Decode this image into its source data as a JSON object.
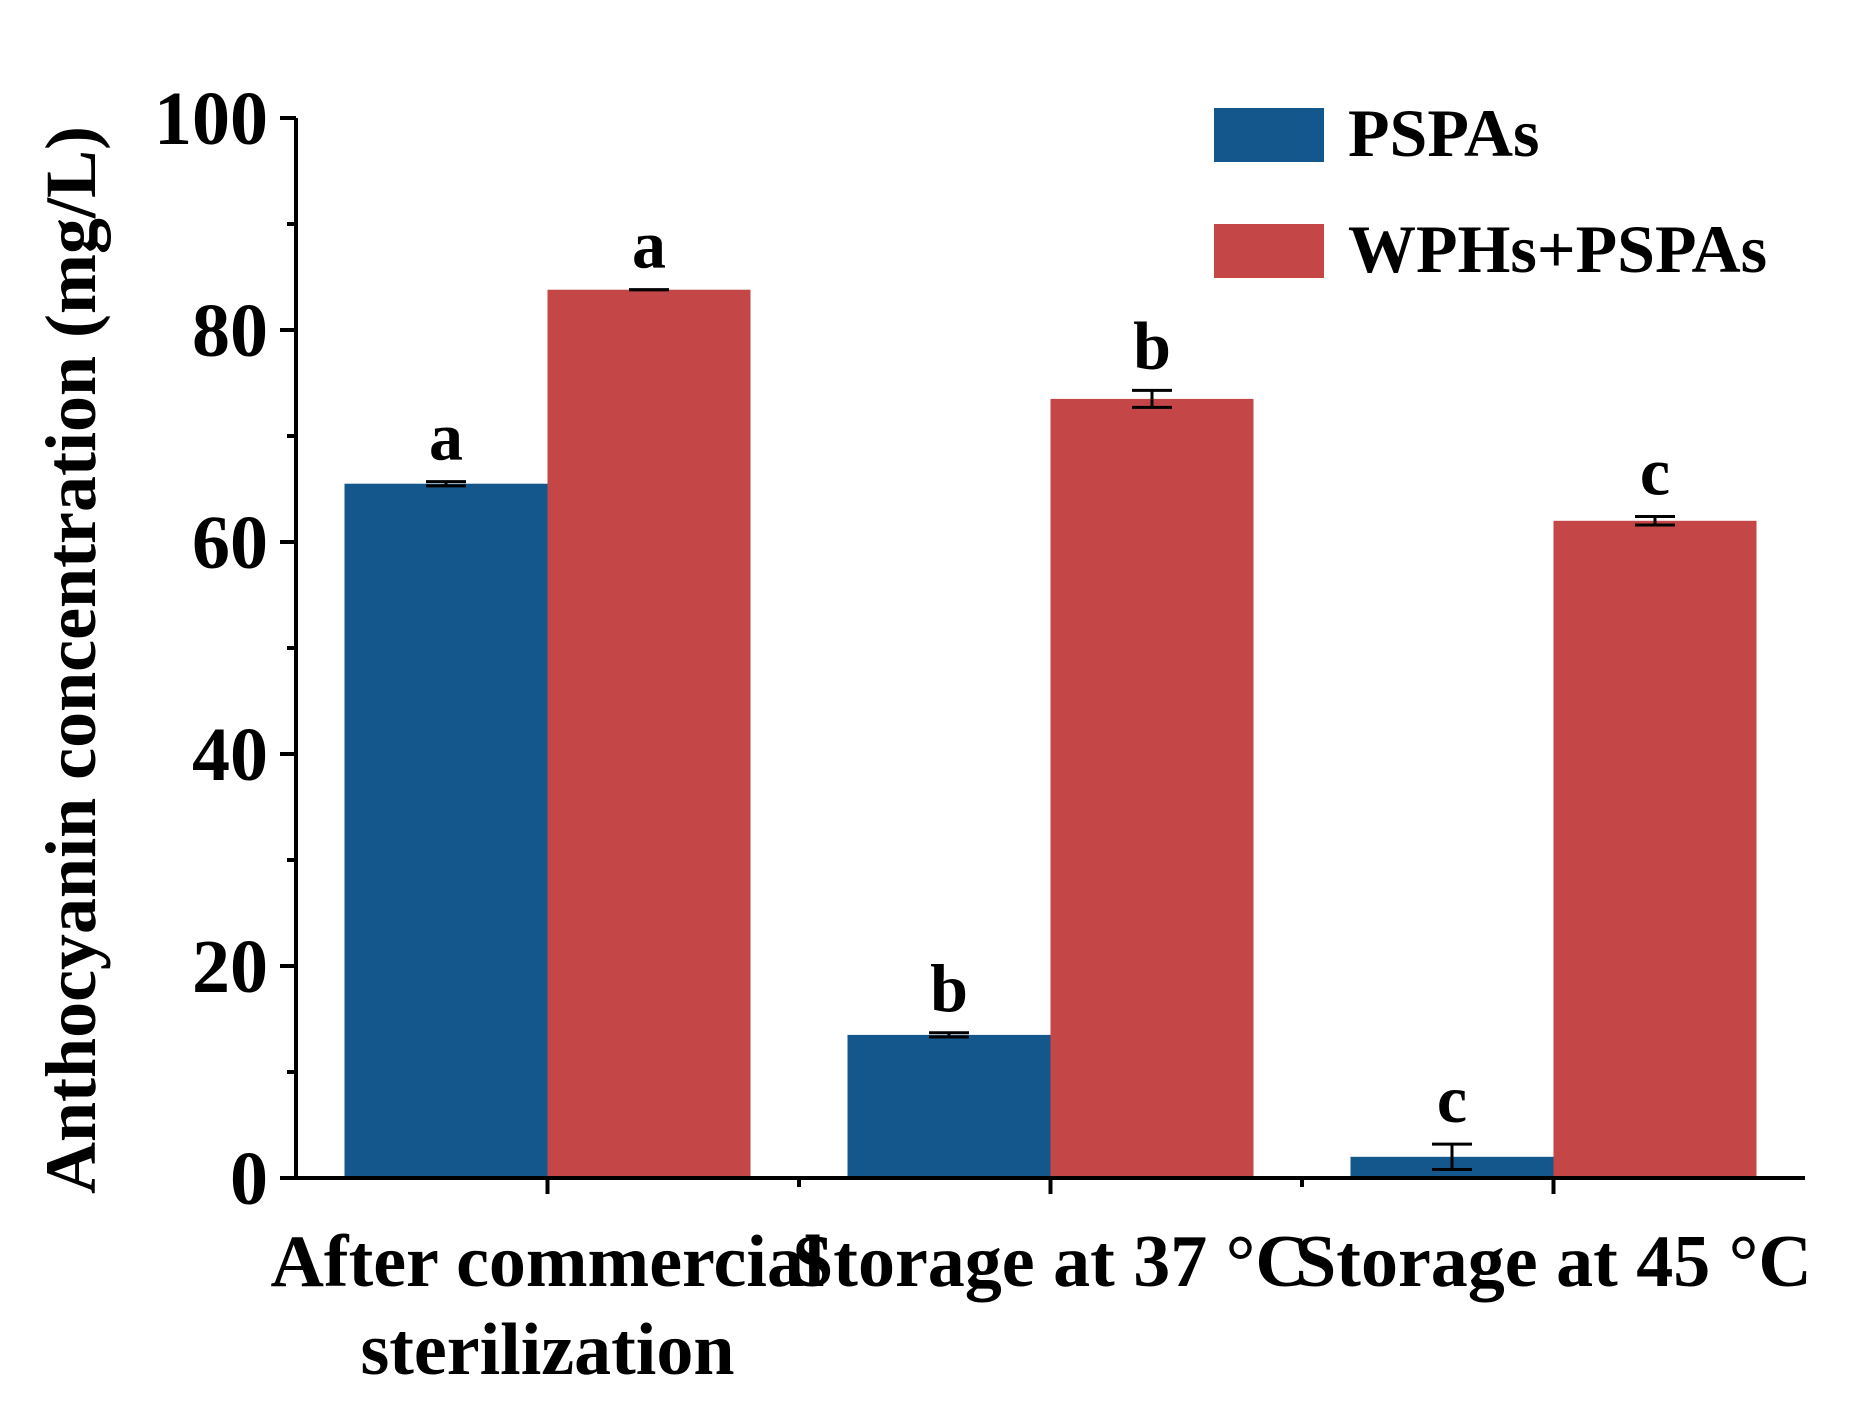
{
  "chart_data": {
    "type": "bar",
    "title": "",
    "xlabel": "",
    "ylabel": "Anthocyanin concentration (mg/L)",
    "ylim": [
      0,
      100
    ],
    "yticks": [
      0,
      20,
      40,
      60,
      80,
      100
    ],
    "categories": [
      [
        "After commercial",
        "sterilization"
      ],
      [
        "Storage at 37 °C"
      ],
      [
        "Storage at 45 °C"
      ]
    ],
    "series": [
      {
        "name": "PSPAs",
        "color": "#13578d",
        "values": [
          65.5,
          13.5,
          2.0
        ],
        "errors": [
          0.2,
          0.2,
          1.2
        ],
        "labels": [
          "a",
          "b",
          "c"
        ]
      },
      {
        "name": "WPHs+PSPAs",
        "color": "#c44646",
        "values": [
          83.8,
          73.5,
          62.0
        ],
        "errors": [
          0.0,
          0.8,
          0.4
        ],
        "labels": [
          "a",
          "b",
          "c"
        ]
      }
    ],
    "legend_position": "top-right",
    "grid": false
  }
}
